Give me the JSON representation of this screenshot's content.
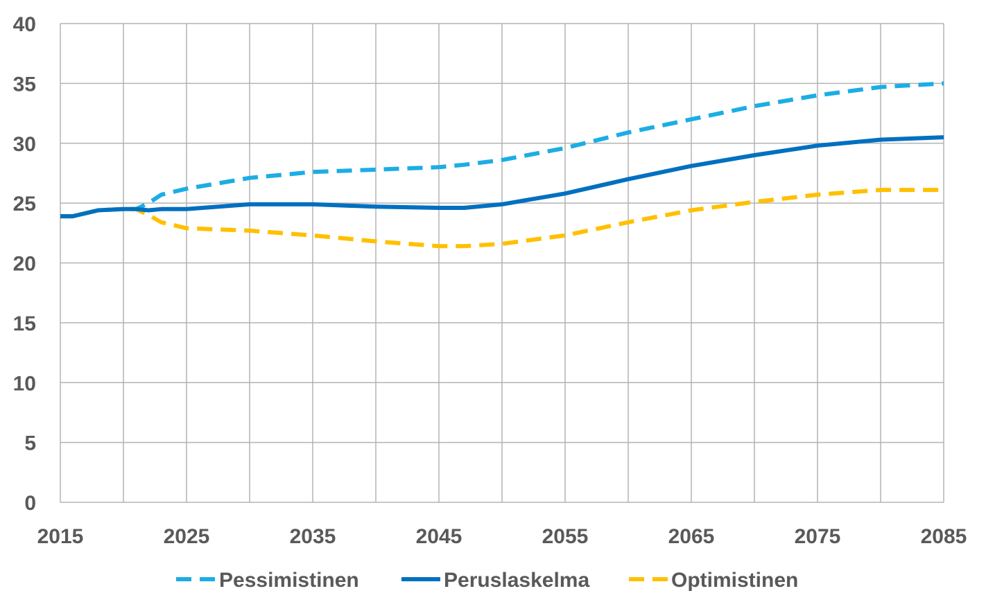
{
  "chart_data": {
    "type": "line",
    "title": "",
    "xlabel": "",
    "ylabel": "",
    "xlim": [
      2015,
      2085
    ],
    "ylim": [
      0,
      40
    ],
    "x_ticks": [
      "2015",
      "2025",
      "2035",
      "2045",
      "2055",
      "2065",
      "2075",
      "2085"
    ],
    "y_ticks": [
      "0",
      "5",
      "10",
      "15",
      "20",
      "25",
      "30",
      "35",
      "40"
    ],
    "grid": true,
    "legend_position": "bottom",
    "x": [
      2015,
      2016,
      2018,
      2020,
      2021,
      2022,
      2023,
      2025,
      2030,
      2035,
      2040,
      2045,
      2047,
      2050,
      2055,
      2060,
      2065,
      2070,
      2075,
      2080,
      2085
    ],
    "series": [
      {
        "name": "Pessimistinen",
        "color": "#1CADE4",
        "dash": "dashed",
        "values": [
          23.9,
          23.9,
          24.4,
          24.5,
          24.5,
          25.0,
          25.7,
          26.2,
          27.1,
          27.6,
          27.8,
          28.0,
          28.2,
          28.6,
          29.6,
          30.9,
          32.0,
          33.1,
          34.0,
          34.7,
          35.0
        ]
      },
      {
        "name": "Peruslaskelma",
        "color": "#0070C0",
        "dash": "solid",
        "values": [
          23.9,
          23.9,
          24.4,
          24.5,
          24.5,
          24.4,
          24.5,
          24.5,
          24.9,
          24.9,
          24.7,
          24.6,
          24.6,
          24.9,
          25.8,
          27.0,
          28.1,
          29.0,
          29.8,
          30.3,
          30.5
        ]
      },
      {
        "name": "Optimistinen",
        "color": "#FFC000",
        "dash": "dashed",
        "values": [
          23.9,
          23.9,
          24.4,
          24.5,
          24.5,
          24.0,
          23.4,
          22.9,
          22.7,
          22.3,
          21.8,
          21.4,
          21.4,
          21.6,
          22.3,
          23.4,
          24.4,
          25.1,
          25.7,
          26.1,
          26.1
        ]
      }
    ]
  }
}
